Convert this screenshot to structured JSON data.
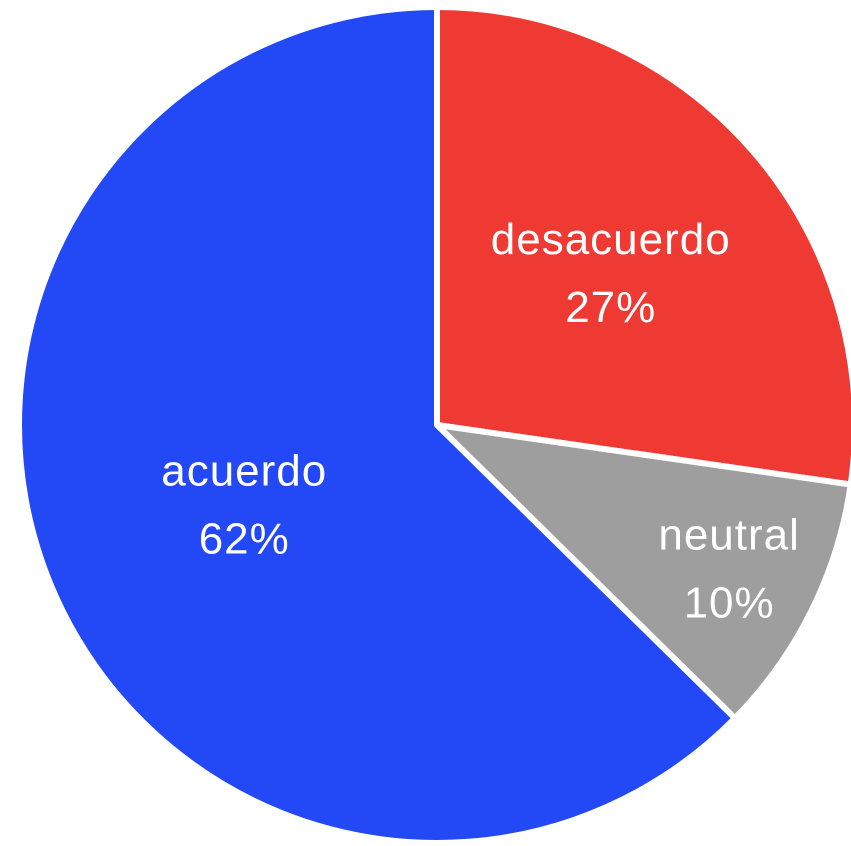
{
  "chart_data": {
    "type": "pie",
    "categories": [
      "desacuerdo",
      "neutral",
      "acuerdo"
    ],
    "values": [
      27,
      10,
      62
    ],
    "value_labels": [
      "27%",
      "10%",
      "62%"
    ],
    "colors": [
      "#ee3a32",
      "#9e9e9e",
      "#2249f5"
    ]
  }
}
